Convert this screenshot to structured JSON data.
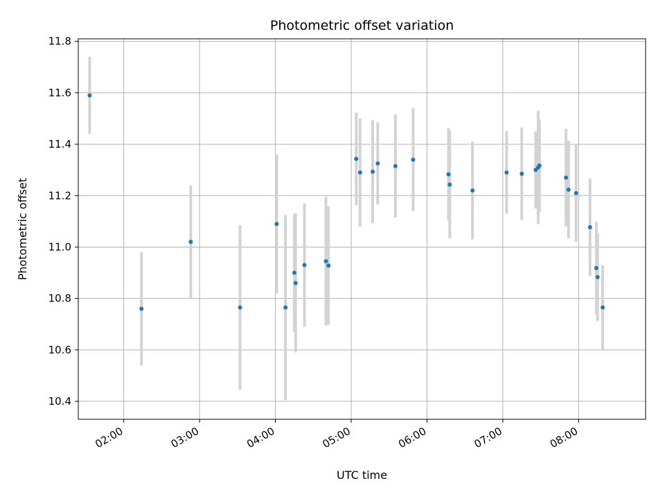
{
  "chart_data": {
    "type": "scatter",
    "title": "Photometric offset variation",
    "xlabel": "UTC time",
    "ylabel": "Photometric offset",
    "x_ticks": [
      "02:00",
      "03:00",
      "04:00",
      "05:00",
      "06:00",
      "07:00",
      "08:00"
    ],
    "y_ticks": [
      "10.4",
      "10.6",
      "10.8",
      "11.0",
      "11.2",
      "11.4",
      "11.6",
      "11.8"
    ],
    "xlim": [
      "01:24",
      "08:53"
    ],
    "ylim": [
      10.33,
      11.81
    ],
    "grid": true,
    "colors": {
      "point": "#1f77b4",
      "errorbar": "#d3d3d3",
      "grid": "#b0b0b0"
    },
    "series": [
      {
        "points": [
          {
            "x": "01:33",
            "y": 11.59,
            "err": 0.15
          },
          {
            "x": "02:14",
            "y": 10.76,
            "err": 0.22
          },
          {
            "x": "02:53",
            "y": 11.02,
            "err": 0.22
          },
          {
            "x": "03:32",
            "y": 10.765,
            "err": 0.32
          },
          {
            "x": "04:01",
            "y": 11.09,
            "err": 0.27
          },
          {
            "x": "04:08",
            "y": 10.765,
            "err": 0.36
          },
          {
            "x": "04:15",
            "y": 10.9,
            "err": 0.23
          },
          {
            "x": "04:16",
            "y": 10.86,
            "err": 0.27
          },
          {
            "x": "04:23",
            "y": 10.93,
            "err": 0.24
          },
          {
            "x": "04:40",
            "y": 10.945,
            "err": 0.25
          },
          {
            "x": "04:42",
            "y": 10.928,
            "err": 0.23
          },
          {
            "x": "05:04",
            "y": 11.343,
            "err": 0.18
          },
          {
            "x": "05:07",
            "y": 11.29,
            "err": 0.21
          },
          {
            "x": "05:17",
            "y": 11.293,
            "err": 0.2
          },
          {
            "x": "05:21",
            "y": 11.325,
            "err": 0.16
          },
          {
            "x": "05:35",
            "y": 11.315,
            "err": 0.2
          },
          {
            "x": "05:49",
            "y": 11.34,
            "err": 0.2
          },
          {
            "x": "06:17",
            "y": 11.283,
            "err": 0.18
          },
          {
            "x": "06:18",
            "y": 11.243,
            "err": 0.21
          },
          {
            "x": "06:36",
            "y": 11.22,
            "err": 0.19
          },
          {
            "x": "07:03",
            "y": 11.29,
            "err": 0.16
          },
          {
            "x": "07:15",
            "y": 11.285,
            "err": 0.18
          },
          {
            "x": "07:26",
            "y": 11.3,
            "err": 0.15
          },
          {
            "x": "07:28",
            "y": 11.31,
            "err": 0.22
          },
          {
            "x": "07:29",
            "y": 11.317,
            "err": 0.18
          },
          {
            "x": "07:50",
            "y": 11.27,
            "err": 0.19
          },
          {
            "x": "07:52",
            "y": 11.223,
            "err": 0.19
          },
          {
            "x": "07:58",
            "y": 11.21,
            "err": 0.19
          },
          {
            "x": "08:09",
            "y": 11.077,
            "err": 0.19
          },
          {
            "x": "08:14",
            "y": 10.918,
            "err": 0.18
          },
          {
            "x": "08:15",
            "y": 10.883,
            "err": 0.17
          },
          {
            "x": "08:19",
            "y": 10.765,
            "err": 0.165
          }
        ]
      }
    ]
  }
}
